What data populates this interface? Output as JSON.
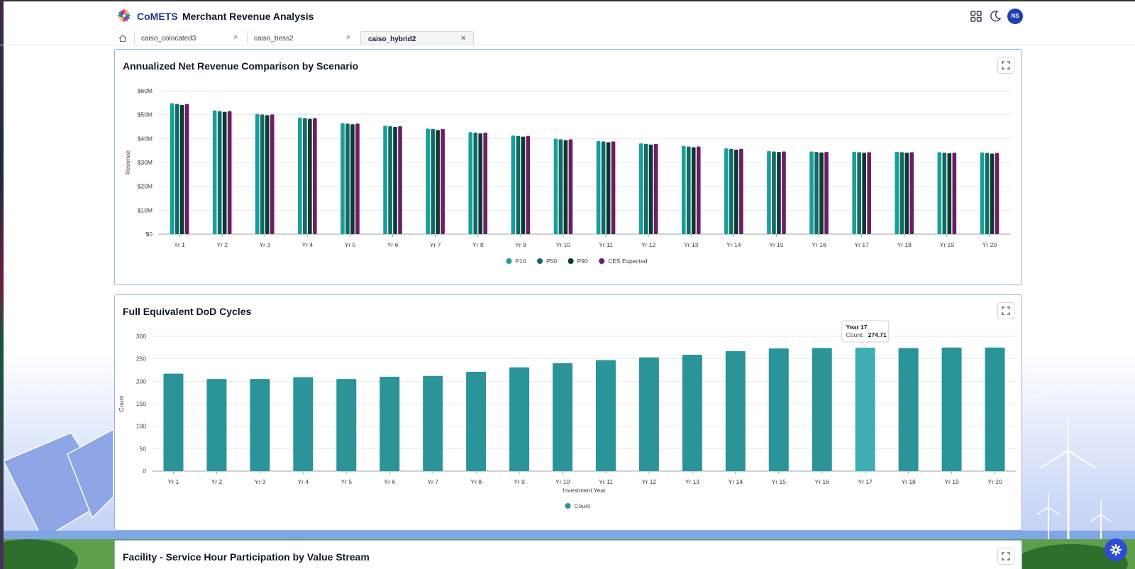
{
  "header": {
    "brand": "CoMETS",
    "separator": "·",
    "title": "Merchant Revenue Analysis",
    "avatar_initials": "NS",
    "icons": [
      "grid-apps-icon",
      "moon-icon"
    ]
  },
  "tabs": [
    {
      "label": "caiso_colocated3",
      "active": false
    },
    {
      "label": "caiso_bess2",
      "active": false
    },
    {
      "label": "caiso_hybrid2",
      "active": true
    }
  ],
  "cards": {
    "revenue": {
      "title": "Annualized Net Revenue Comparison by Scenario"
    },
    "cycles": {
      "title": "Full Equivalent DoD Cycles"
    },
    "participation": {
      "title": "Facility - Service Hour Participation by Value Stream"
    }
  },
  "chart_data": [
    {
      "type": "bar",
      "title": "Annualized Net Revenue Comparison by Scenario",
      "xlabel": "",
      "ylabel": "Revenue",
      "ylim": [
        0,
        60
      ],
      "yticks": [
        "$0",
        "$10M",
        "$20M",
        "$30M",
        "$40M",
        "$50M",
        "$60M"
      ],
      "grid": true,
      "legend_position": "bottom",
      "categories": [
        "Yr 1",
        "Yr 2",
        "Yr 3",
        "Yr 4",
        "Yr 5",
        "Yr 6",
        "Yr 7",
        "Yr 8",
        "Yr 9",
        "Yr 10",
        "Yr 11",
        "Yr 12",
        "Yr 13",
        "Yr 14",
        "Yr 15",
        "Yr 16",
        "Yr 17",
        "Yr 18",
        "Yr 19",
        "Yr 20"
      ],
      "series": [
        {
          "name": "P10",
          "color": "#1a9e99",
          "values": [
            54.8,
            51.8,
            50.3,
            48.8,
            46.5,
            45.4,
            44.2,
            42.7,
            41.3,
            39.9,
            39.0,
            38.0,
            36.9,
            35.9,
            34.8,
            34.6,
            34.5,
            34.5,
            34.3,
            34.2
          ]
        },
        {
          "name": "P50",
          "color": "#0f6b66",
          "values": [
            54.5,
            51.5,
            50.1,
            48.6,
            46.3,
            45.2,
            44.0,
            42.5,
            41.1,
            39.7,
            38.8,
            37.8,
            36.7,
            35.7,
            34.6,
            34.4,
            34.3,
            34.3,
            34.1,
            34.0
          ]
        },
        {
          "name": "P90",
          "color": "#0b3a33",
          "values": [
            54.1,
            51.2,
            49.8,
            48.3,
            46.0,
            44.9,
            43.6,
            42.2,
            40.8,
            39.4,
            38.5,
            37.5,
            36.4,
            35.4,
            34.4,
            34.2,
            34.1,
            34.1,
            33.9,
            33.7
          ]
        },
        {
          "name": "CES Expected",
          "color": "#6e1c63",
          "values": [
            54.5,
            51.5,
            50.1,
            48.6,
            46.3,
            45.2,
            44.0,
            42.5,
            41.1,
            39.7,
            38.8,
            37.8,
            36.7,
            35.7,
            34.6,
            34.4,
            34.3,
            34.3,
            34.1,
            34.0
          ]
        }
      ]
    },
    {
      "type": "bar",
      "title": "Full Equivalent DoD Cycles",
      "xlabel": "Investment Year",
      "ylabel": "Count",
      "ylim": [
        0,
        300
      ],
      "yticks": [
        "0",
        "50",
        "100",
        "150",
        "200",
        "250",
        "300"
      ],
      "grid": true,
      "legend_position": "bottom",
      "categories": [
        "Yr 1",
        "Yr 2",
        "Yr 3",
        "Yr 4",
        "Yr 5",
        "Yr 6",
        "Yr 7",
        "Yr 8",
        "Yr 9",
        "Yr 10",
        "Yr 11",
        "Yr 12",
        "Yr 13",
        "Yr 14",
        "Yr 15",
        "Yr 16",
        "Yr 17",
        "Yr 18",
        "Yr 19",
        "Yr 20"
      ],
      "series": [
        {
          "name": "Count",
          "color": "#2a9499",
          "values": [
            217,
            205,
            205,
            209,
            205,
            210,
            212,
            221,
            231,
            240,
            247,
            253,
            259,
            267,
            273,
            274,
            274.71,
            274,
            275,
            275
          ]
        }
      ],
      "highlight_index": 16,
      "highlight_color": "#3fadb3",
      "tooltip": {
        "title": "Year 17",
        "label": "Count:",
        "value": "274.71"
      }
    }
  ]
}
